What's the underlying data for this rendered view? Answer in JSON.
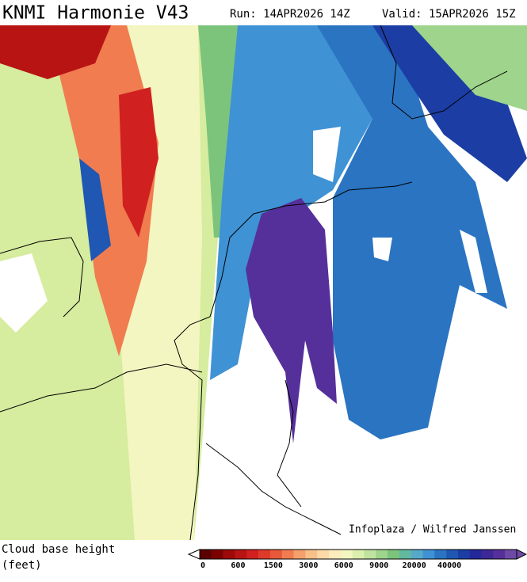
{
  "header": {
    "title": "KNMI Harmonie V43",
    "run": "Run: 14APR2026 14Z",
    "valid": "Valid: 15APR2026 15Z"
  },
  "map": {
    "credit": "Infoplaza / Wilfred Janssen"
  },
  "legend": {
    "label_line1": "Cloud base height",
    "label_line2": "(feet)",
    "colors": [
      "#5a0000",
      "#7d0000",
      "#9e0a0a",
      "#b81414",
      "#d02020",
      "#de3a2a",
      "#e8583a",
      "#f07c50",
      "#f5a06c",
      "#f9c08a",
      "#fcd9a6",
      "#fdecbe",
      "#f3f6c0",
      "#ddefae",
      "#bfe3a0",
      "#9ed48c",
      "#7cc47c",
      "#63b99e",
      "#56aac8",
      "#3f92d4",
      "#2a74c2",
      "#1f57b2",
      "#1c3ea4",
      "#24289a",
      "#3e2796",
      "#55309a",
      "#6e4aa6"
    ],
    "ticks": [
      "0",
      "600",
      "1500",
      "3000",
      "6000",
      "9000",
      "20000",
      "40000"
    ]
  }
}
